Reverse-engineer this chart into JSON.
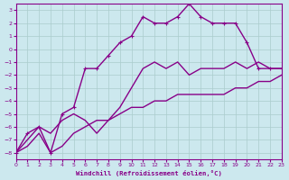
{
  "xlabel": "Windchill (Refroidissement éolien,°C)",
  "ylabel": "",
  "bg_color": "#cce8ee",
  "grid_color": "#aacccc",
  "line_color": "#880088",
  "xlim": [
    0,
    23
  ],
  "ylim": [
    -8.5,
    3.5
  ],
  "xticks": [
    0,
    1,
    2,
    3,
    4,
    5,
    6,
    7,
    8,
    9,
    10,
    11,
    12,
    13,
    14,
    15,
    16,
    17,
    18,
    19,
    20,
    21,
    22,
    23
  ],
  "yticks": [
    3,
    2,
    1,
    0,
    -1,
    -2,
    -3,
    -4,
    -5,
    -6,
    -7,
    -8
  ],
  "line1_x": [
    0,
    1,
    2,
    3,
    4,
    5,
    6,
    7,
    8,
    9,
    10,
    11,
    12,
    13,
    14,
    15,
    16,
    17,
    18,
    19,
    20,
    21,
    22,
    23
  ],
  "line1_y": [
    -8.0,
    -7.5,
    -6.5,
    -8.0,
    -7.5,
    -6.5,
    -6.0,
    -5.5,
    -5.5,
    -5.0,
    -4.5,
    -4.5,
    -4.0,
    -4.0,
    -3.5,
    -3.5,
    -3.5,
    -3.5,
    -3.5,
    -3.0,
    -3.0,
    -2.5,
    -2.5,
    -2.0
  ],
  "line2_x": [
    0,
    1,
    2,
    3,
    4,
    5,
    6,
    7,
    8,
    9,
    10,
    11,
    12,
    13,
    14,
    15,
    16,
    17,
    18,
    19,
    20,
    21,
    22,
    23
  ],
  "line2_y": [
    -8.0,
    -7.0,
    -6.0,
    -6.5,
    -5.5,
    -5.0,
    -5.5,
    -6.5,
    -5.5,
    -4.5,
    -3.0,
    -1.5,
    -1.0,
    -1.5,
    -1.0,
    -2.0,
    -1.5,
    -1.5,
    -1.5,
    -1.0,
    -1.5,
    -1.0,
    -1.5,
    -1.5
  ],
  "line3_x": [
    0,
    1,
    2,
    3,
    4,
    5,
    6,
    7,
    8,
    9,
    10,
    11,
    12,
    13,
    14,
    15,
    16,
    17,
    18,
    19,
    20,
    21,
    22,
    23
  ],
  "line3_y": [
    -8.0,
    -6.5,
    -6.0,
    -8.0,
    -5.0,
    -4.5,
    -1.5,
    -1.5,
    -0.5,
    0.5,
    1.0,
    2.5,
    2.0,
    2.0,
    2.5,
    3.5,
    2.5,
    2.0,
    2.0,
    2.0,
    0.5,
    -1.5,
    -1.5,
    -1.5
  ],
  "marker": "P",
  "markersize": 3,
  "linewidth": 1.0
}
